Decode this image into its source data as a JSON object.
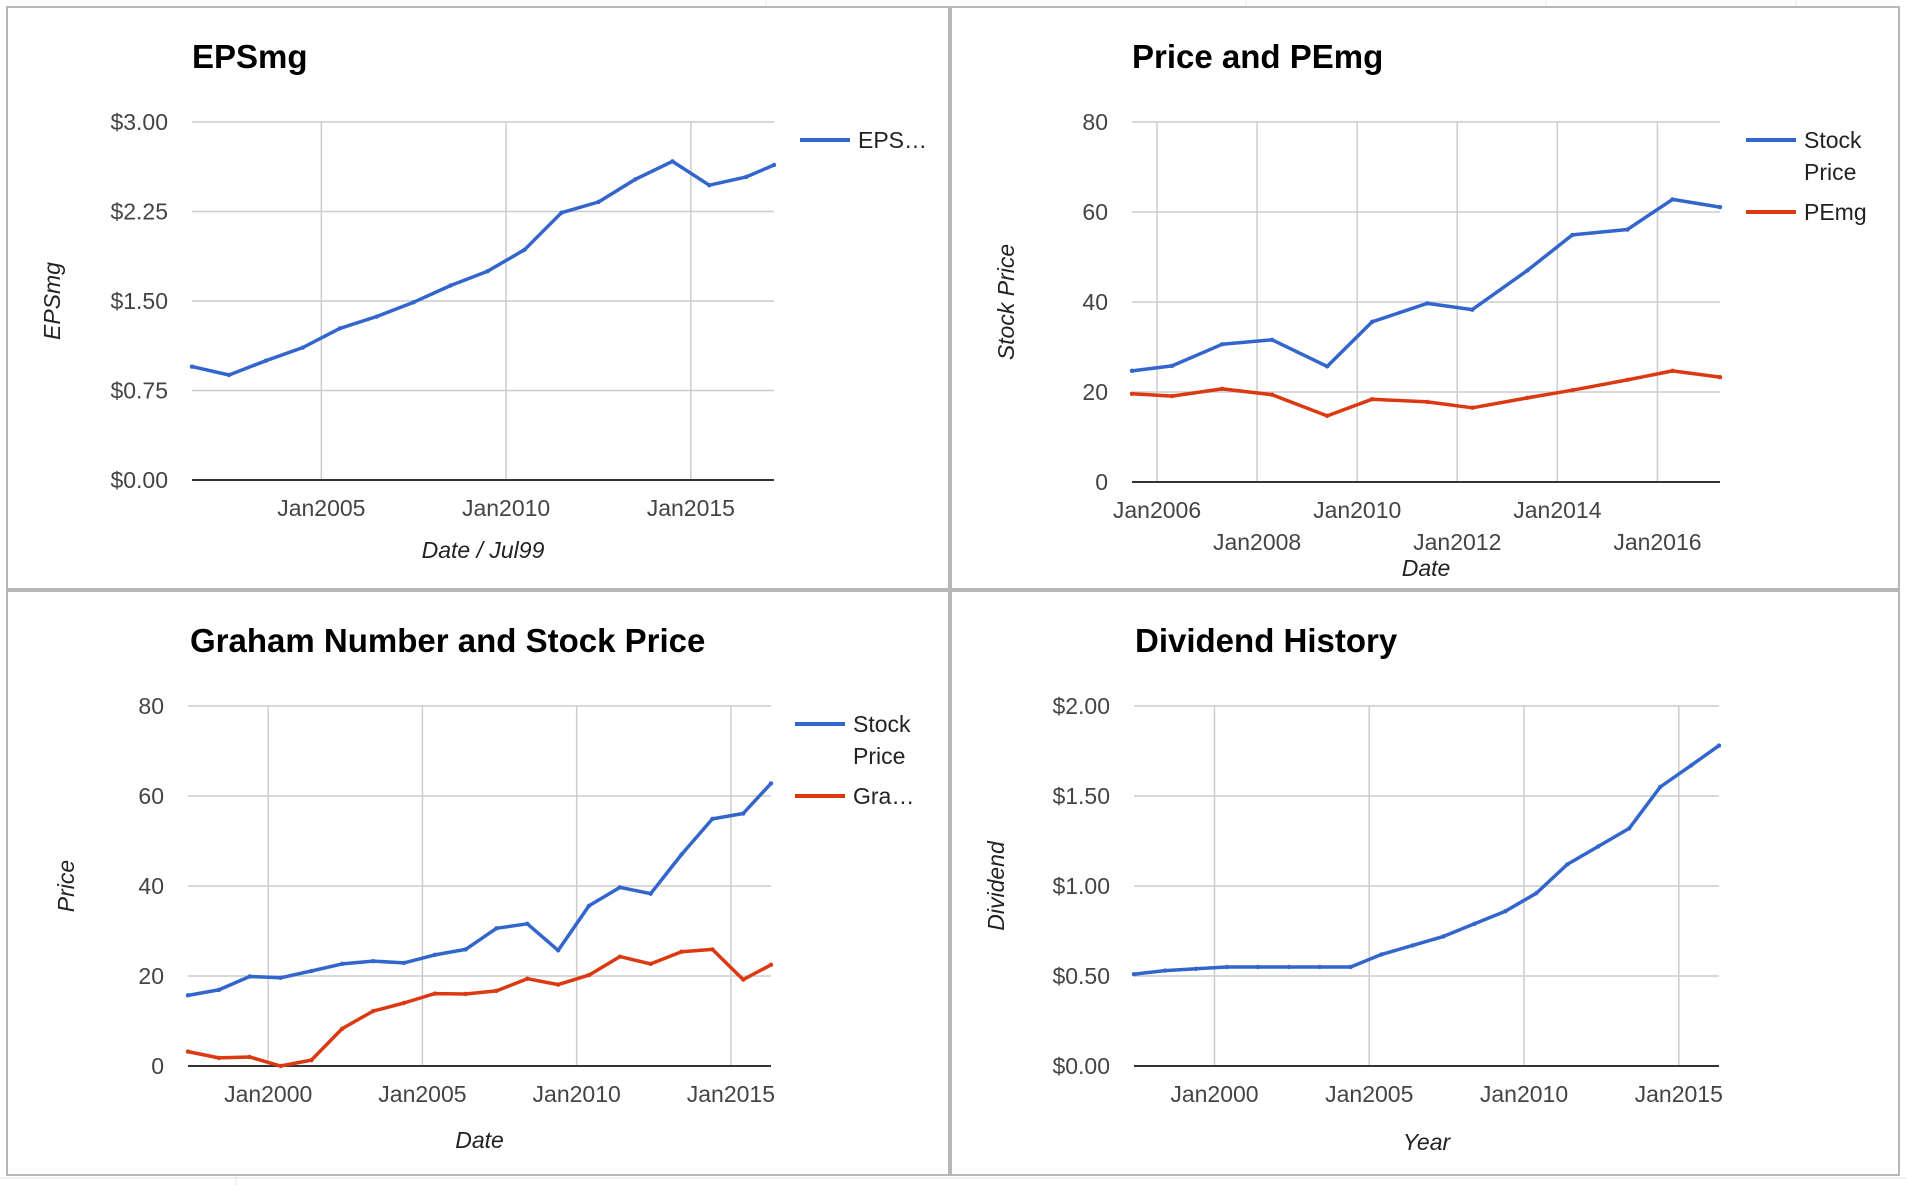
{
  "colors": {
    "blue": "#3366cc",
    "red": "#dc3912"
  },
  "chart_data": [
    {
      "type": "line",
      "title": "EPSmg",
      "xlabel": "Date / Jul99",
      "ylabel": "EPSmg",
      "xlim": [
        2001.5,
        2017.25
      ],
      "ylim": [
        0,
        3
      ],
      "yticks": [
        0,
        0.75,
        1.5,
        2.25,
        3
      ],
      "ytick_labels": [
        "$0.00",
        "$0.75",
        "$1.50",
        "$2.25",
        "$3.00"
      ],
      "xticks": [
        2005,
        2010,
        2015
      ],
      "xtick_labels": [
        "Jan2005",
        "Jan2010",
        "Jan2015"
      ],
      "vgrid": [
        2005,
        2010,
        2015
      ],
      "grid": true,
      "legend": "right",
      "series": [
        {
          "name": "EPS…",
          "color": "#3366cc",
          "x": [
            2001.5,
            2002.5,
            2003.5,
            2004.5,
            2005.5,
            2006.5,
            2007.5,
            2008.5,
            2009.5,
            2010.5,
            2011.5,
            2012.5,
            2013.5,
            2014.5,
            2015.5,
            2016.5,
            2017.25
          ],
          "y": [
            0.95,
            0.88,
            1.0,
            1.11,
            1.27,
            1.37,
            1.49,
            1.63,
            1.75,
            1.93,
            2.24,
            2.33,
            2.52,
            2.67,
            2.47,
            2.54,
            2.64
          ]
        }
      ]
    },
    {
      "type": "line",
      "title": "Price and PEmg",
      "xlabel": "Date",
      "ylabel": "Stock Price",
      "xlim": [
        2005.5,
        2017.25
      ],
      "ylim": [
        0,
        80
      ],
      "yticks": [
        0,
        20,
        40,
        60,
        80
      ],
      "ytick_labels": [
        "0",
        "20",
        "40",
        "60",
        "80"
      ],
      "xticks": [
        2006,
        2008,
        2010,
        2012,
        2014,
        2016
      ],
      "xtick_labels": [
        "Jan2006",
        "Jan2008",
        "Jan2010",
        "Jan2012",
        "Jan2014",
        "Jan2016"
      ],
      "vgrid": [
        2006,
        2008,
        2010,
        2012,
        2014,
        2016
      ],
      "grid": true,
      "legend": "right",
      "series": [
        {
          "name": "Stock Price",
          "color": "#3366cc",
          "x": [
            2005.5,
            2006.3,
            2007.3,
            2008.3,
            2009.4,
            2010.3,
            2011.4,
            2012.3,
            2013.4,
            2014.3,
            2015.4,
            2016.3,
            2017.25
          ],
          "y": [
            24.7,
            25.8,
            30.6,
            31.6,
            25.7,
            35.6,
            39.7,
            38.3,
            47.0,
            54.9,
            56.1,
            62.8,
            61.1
          ]
        },
        {
          "name": "PEmg",
          "color": "#dc3912",
          "x": [
            2005.5,
            2006.3,
            2007.3,
            2008.3,
            2009.4,
            2010.3,
            2011.4,
            2012.3,
            2013.4,
            2014.3,
            2015.4,
            2016.3,
            2017.25
          ],
          "y": [
            19.6,
            19.1,
            20.7,
            19.4,
            14.7,
            18.4,
            17.8,
            16.5,
            18.7,
            20.4,
            22.7,
            24.7,
            23.3
          ]
        }
      ]
    },
    {
      "type": "line",
      "title": "Graham Number and Stock Price",
      "xlabel": "Date",
      "ylabel": "Price",
      "xlim": [
        1997.4,
        2016.3
      ],
      "ylim": [
        0,
        80
      ],
      "yticks": [
        0,
        20,
        40,
        60,
        80
      ],
      "ytick_labels": [
        "0",
        "20",
        "40",
        "60",
        "80"
      ],
      "xticks": [
        2000,
        2005,
        2010,
        2015
      ],
      "xtick_labels": [
        "Jan2000",
        "Jan2005",
        "Jan2010",
        "Jan2015"
      ],
      "vgrid": [
        2000,
        2005,
        2010,
        2015
      ],
      "grid": true,
      "legend": "right",
      "series": [
        {
          "name": "Stock Price",
          "color": "#3366cc",
          "x": [
            1997.4,
            1998.4,
            1999.4,
            2000.4,
            2001.4,
            2002.4,
            2003.4,
            2004.4,
            2005.4,
            2006.4,
            2007.4,
            2008.4,
            2009.4,
            2010.4,
            2011.4,
            2012.4,
            2013.4,
            2014.4,
            2015.4,
            2016.3
          ],
          "y": [
            15.7,
            16.9,
            19.9,
            19.6,
            21.1,
            22.7,
            23.3,
            22.9,
            24.7,
            25.9,
            30.6,
            31.6,
            25.7,
            35.6,
            39.7,
            38.3,
            47.0,
            54.9,
            56.1,
            62.8
          ]
        },
        {
          "name": "Gra…",
          "color": "#dc3912",
          "x": [
            1997.4,
            1998.4,
            1999.4,
            2000.4,
            2001.4,
            2002.4,
            2003.4,
            2004.4,
            2005.4,
            2006.4,
            2007.4,
            2008.4,
            2009.4,
            2010.4,
            2011.4,
            2012.4,
            2013.4,
            2014.4,
            2015.4,
            2016.3
          ],
          "y": [
            3.2,
            1.8,
            2.0,
            0.0,
            1.3,
            8.3,
            12.2,
            14.0,
            16.1,
            16.0,
            16.7,
            19.4,
            18.1,
            20.2,
            24.3,
            22.7,
            25.4,
            25.9,
            19.2,
            22.5
          ]
        }
      ]
    },
    {
      "type": "line",
      "title": "Dividend History",
      "xlabel": "Year",
      "ylabel": "Dividend",
      "xlim": [
        1997.4,
        2016.3
      ],
      "ylim": [
        0,
        2
      ],
      "yticks": [
        0,
        0.5,
        1,
        1.5,
        2
      ],
      "ytick_labels": [
        "$0.00",
        "$0.50",
        "$1.00",
        "$1.50",
        "$2.00"
      ],
      "xticks": [
        2000,
        2005,
        2010,
        2015
      ],
      "xtick_labels": [
        "Jan2000",
        "Jan2005",
        "Jan2010",
        "Jan2015"
      ],
      "vgrid": [
        2000,
        2005,
        2010,
        2015
      ],
      "grid": true,
      "legend": "none",
      "series": [
        {
          "name": "",
          "color": "#3366cc",
          "x": [
            1997.4,
            1998.4,
            1999.4,
            2000.4,
            2001.4,
            2002.4,
            2003.4,
            2004.4,
            2005.4,
            2006.4,
            2007.4,
            2008.4,
            2009.4,
            2010.4,
            2011.4,
            2012.4,
            2013.4,
            2014.4,
            2015.4,
            2016.3
          ],
          "y": [
            0.51,
            0.53,
            0.54,
            0.55,
            0.55,
            0.55,
            0.55,
            0.55,
            0.62,
            0.67,
            0.72,
            0.79,
            0.86,
            0.96,
            1.12,
            1.22,
            1.32,
            1.55,
            1.67,
            1.78
          ]
        }
      ]
    }
  ]
}
